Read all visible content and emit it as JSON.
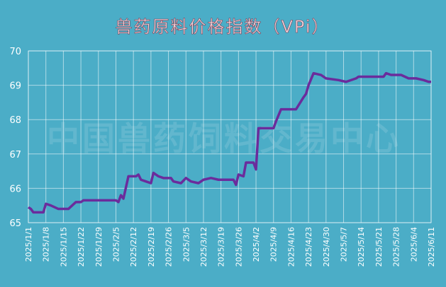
{
  "chart_data": {
    "type": "line",
    "title": "兽药原料价格指数（VPi）",
    "watermark": "中国兽药饲料交易中心",
    "x": [
      "2025/1/1",
      "2025/1/2",
      "2025/1/3",
      "2025/1/7",
      "2025/1/8",
      "2025/1/10",
      "2025/1/13",
      "2025/1/17",
      "2025/1/20",
      "2025/1/22",
      "2025/1/23",
      "2025/2/5",
      "2025/2/6",
      "2025/2/7",
      "2025/2/8",
      "2025/2/10",
      "2025/2/13",
      "2025/2/14",
      "2025/2/15",
      "2025/2/17",
      "2025/2/19",
      "2025/2/20",
      "2025/2/22",
      "2025/2/24",
      "2025/2/27",
      "2025/2/28",
      "2025/3/3",
      "2025/3/5",
      "2025/3/7",
      "2025/3/10",
      "2025/3/12",
      "2025/3/15",
      "2025/3/18",
      "2025/3/24",
      "2025/3/25",
      "2025/3/26",
      "2025/3/28",
      "2025/3/29",
      "2025/4/1",
      "2025/4/2",
      "2025/4/3",
      "2025/4/9",
      "2025/4/10",
      "2025/4/12",
      "2025/4/18",
      "2025/4/21",
      "2025/4/22",
      "2025/4/23",
      "2025/4/25",
      "2025/4/28",
      "2025/4/30",
      "2025/5/5",
      "2025/5/8",
      "2025/5/12",
      "2025/5/13",
      "2025/5/23",
      "2025/5/24",
      "2025/5/26",
      "2025/5/30",
      "2025/6/2",
      "2025/6/5",
      "2025/6/8",
      "2025/6/10",
      "2025/6/11"
    ],
    "series": [
      {
        "name": "VPi",
        "color": "#6b2c9c",
        "values": [
          65.45,
          65.4,
          65.3,
          65.3,
          65.55,
          65.5,
          65.4,
          65.4,
          65.6,
          65.6,
          65.65,
          65.65,
          65.6,
          65.8,
          65.7,
          66.35,
          66.35,
          66.4,
          66.25,
          66.2,
          66.15,
          66.45,
          66.35,
          66.3,
          66.3,
          66.2,
          66.15,
          66.3,
          66.2,
          66.15,
          66.25,
          66.3,
          66.25,
          66.25,
          66.1,
          66.4,
          66.35,
          66.75,
          66.75,
          66.55,
          67.75,
          67.75,
          67.95,
          68.3,
          68.3,
          68.65,
          68.75,
          69.0,
          69.35,
          69.3,
          69.2,
          69.15,
          69.1,
          69.2,
          69.25,
          69.25,
          69.35,
          69.3,
          69.3,
          69.2,
          69.2,
          69.15,
          69.1,
          69.1
        ]
      }
    ],
    "xlim": [
      "2025/1/1",
      "2025/6/11"
    ],
    "xticks": [
      "2025/1/1",
      "2025/1/8",
      "2025/1/15",
      "2025/1/22",
      "2025/1/29",
      "2025/2/5",
      "2025/2/12",
      "2025/2/19",
      "2025/2/26",
      "2025/3/5",
      "2025/3/12",
      "2025/3/19",
      "2025/3/26",
      "2025/4/2",
      "2025/4/9",
      "2025/4/16",
      "2025/4/23",
      "2025/4/30",
      "2025/5/7",
      "2025/5/14",
      "2025/5/21",
      "2025/5/28",
      "2025/6/4",
      "2025/6/11"
    ],
    "ylim": [
      65,
      70
    ],
    "yticks": [
      65,
      66,
      67,
      68,
      69,
      70
    ],
    "grid": true
  }
}
